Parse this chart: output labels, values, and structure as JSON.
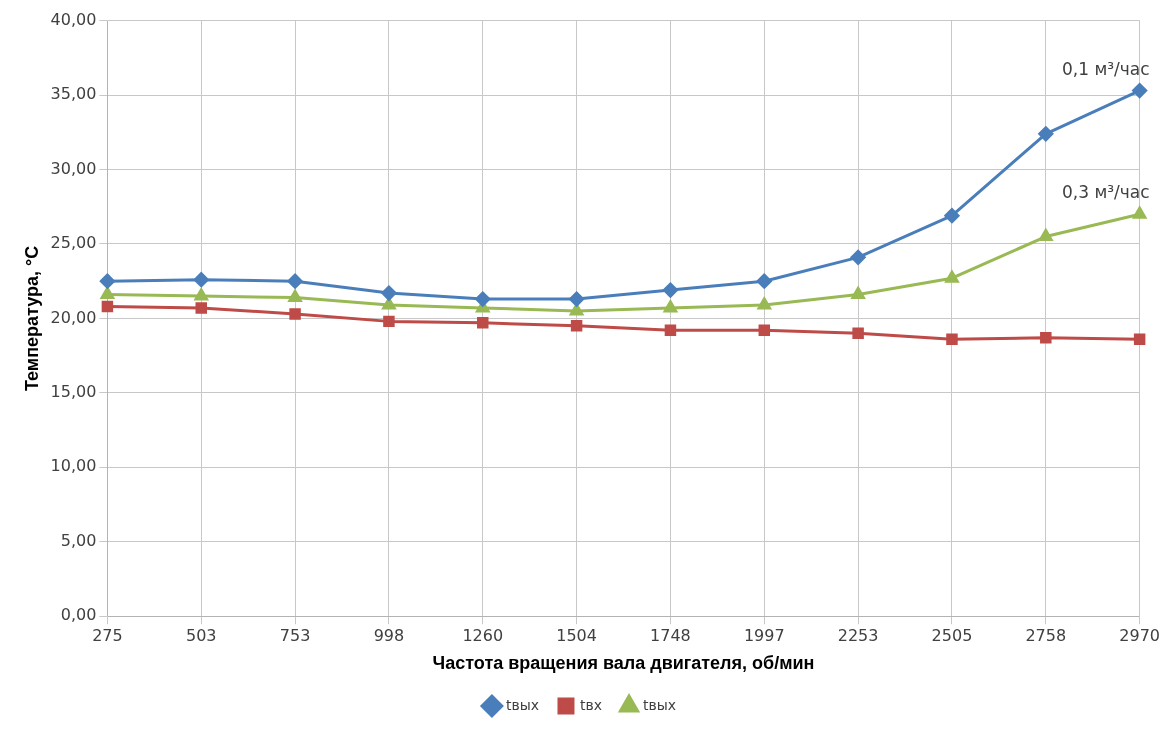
{
  "chart_data": {
    "type": "line",
    "xlabel": "Частота вращения вала двигателя, об/мин",
    "ylabel": "Температура, °С",
    "categories": [
      "275",
      "503",
      "753",
      "998",
      "1260",
      "1504",
      "1748",
      "1997",
      "2253",
      "2505",
      "2758",
      "2970"
    ],
    "series": [
      {
        "name": "tвых",
        "color": "#4a7ebb",
        "marker": "diamond",
        "values": [
          22.5,
          22.6,
          22.5,
          21.7,
          21.3,
          21.3,
          21.9,
          22.5,
          24.1,
          26.9,
          32.4,
          35.3
        ]
      },
      {
        "name": "tвх",
        "color": "#be4b48",
        "marker": "square",
        "values": [
          20.8,
          20.7,
          20.3,
          19.8,
          19.7,
          19.5,
          19.2,
          19.2,
          19.0,
          18.6,
          18.7,
          18.6
        ]
      },
      {
        "name": "tвых",
        "color": "#98b954",
        "marker": "triangle",
        "values": [
          21.6,
          21.5,
          21.4,
          20.9,
          20.7,
          20.5,
          20.7,
          20.9,
          21.6,
          22.7,
          25.5,
          27.0
        ]
      }
    ],
    "ylim": [
      0,
      40
    ],
    "yticks": [
      {
        "value": 0,
        "label": "0,00"
      },
      {
        "value": 5,
        "label": "5,00"
      },
      {
        "value": 10,
        "label": "10,00"
      },
      {
        "value": 15,
        "label": "15,00"
      },
      {
        "value": 20,
        "label": "20,00"
      },
      {
        "value": 25,
        "label": "25,00"
      },
      {
        "value": 30,
        "label": "30,00"
      },
      {
        "value": 35,
        "label": "35,00"
      },
      {
        "value": 40,
        "label": "40,00"
      }
    ],
    "grid": true,
    "legend": "bottom",
    "annotations": [
      {
        "text": "0,1 м³/час",
        "x": "2970",
        "y": 35.3
      },
      {
        "text": "0,3 м³/час",
        "x": "2970",
        "y": 27.0
      }
    ]
  }
}
